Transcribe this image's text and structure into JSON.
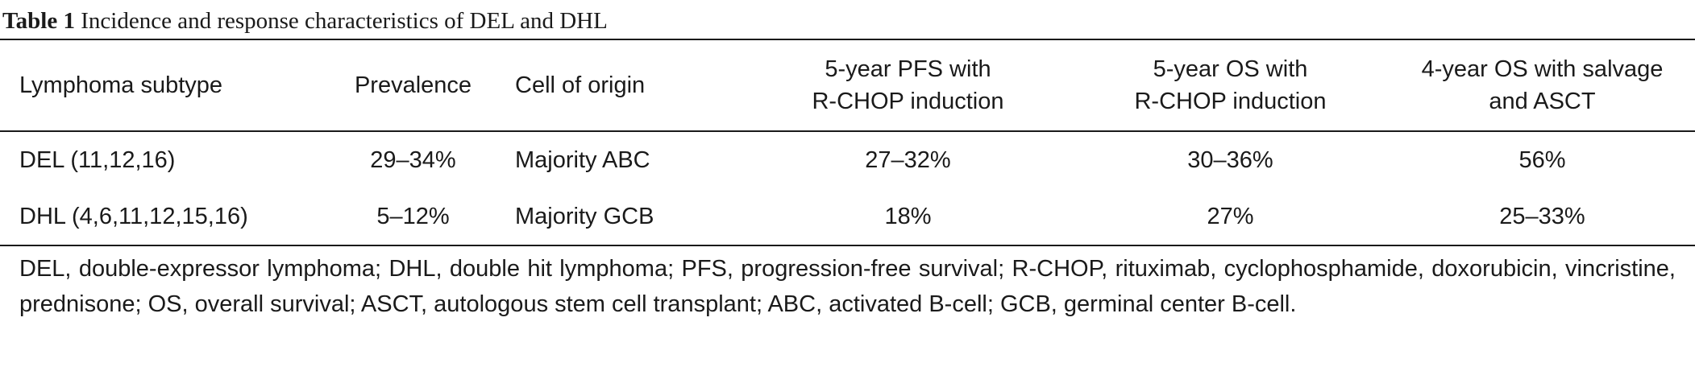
{
  "caption": {
    "label": "Table 1",
    "title": "Incidence and response characteristics of DEL and DHL"
  },
  "table": {
    "headers": [
      [
        "Lymphoma subtype"
      ],
      [
        "Prevalence"
      ],
      [
        "Cell of origin"
      ],
      [
        "5-year PFS with",
        "R-CHOP induction"
      ],
      [
        "5-year OS with",
        "R-CHOP induction"
      ],
      [
        "4-year OS with salvage",
        "and ASCT"
      ]
    ],
    "rows": [
      [
        "DEL (11,12,16)",
        "29–34%",
        "Majority ABC",
        "27–32%",
        "30–36%",
        "56%"
      ],
      [
        "DHL (4,6,11,12,15,16)",
        "5–12%",
        "Majority GCB",
        "18%",
        "27%",
        "25–33%"
      ]
    ]
  },
  "footnote": "DEL, double-expressor lymphoma; DHL, double hit lymphoma; PFS, progression-free survival; R-CHOP, rituximab, cyclophosphamide, doxorubicin, vincristine, prednisone; OS, overall survival; ASCT, autologous stem cell transplant; ABC, activated B-cell; GCB, germinal center B-cell."
}
